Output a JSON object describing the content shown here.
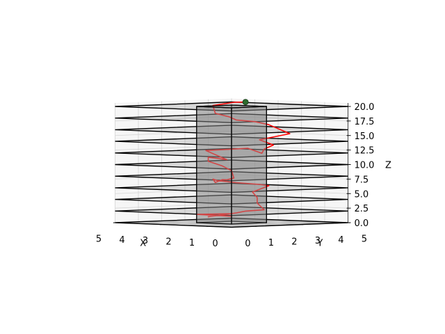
{
  "chart_data": {
    "type": "line3d",
    "title": "",
    "axes": {
      "x": {
        "label": "X",
        "range": [
          0,
          5
        ],
        "ticks": [
          "0",
          "1",
          "2",
          "3",
          "4",
          "5"
        ]
      },
      "y": {
        "label": "Y",
        "range": [
          0,
          5
        ],
        "ticks": [
          "0",
          "1",
          "2",
          "3",
          "4",
          "5"
        ]
      },
      "z": {
        "label": "Z",
        "range": [
          0,
          20
        ],
        "ticks": [
          "0.0",
          "2.5",
          "5.0",
          "7.5",
          "10.0",
          "12.5",
          "15.0",
          "17.5",
          "20.0"
        ]
      }
    },
    "grid": true,
    "floors": {
      "count": 10,
      "z_levels": [
        0,
        2,
        4,
        6,
        8,
        10,
        12,
        14,
        16,
        18,
        20
      ],
      "color": "#000000"
    },
    "central_column": {
      "x_range": [
        1.75,
        3.25
      ],
      "y_range": [
        1.75,
        3.25
      ],
      "z_range": [
        0,
        20
      ],
      "color": "#9a9a9a"
    },
    "path": {
      "color": "#ff0000",
      "points": [
        [
          4.1,
          4.1,
          0.6
        ],
        [
          4.6,
          3.1,
          1.0
        ],
        [
          3.6,
          3.6,
          1.2
        ],
        [
          4.3,
          3.3,
          0.6
        ],
        [
          3.3,
          3.5,
          1.4
        ],
        [
          2.8,
          3.4,
          1.8
        ],
        [
          1.9,
          3.3,
          2.2
        ],
        [
          2.2,
          3.3,
          3.3
        ],
        [
          2.4,
          3.5,
          4.2
        ],
        [
          2.6,
          3.5,
          5.1
        ],
        [
          2.2,
          3.8,
          6.2
        ],
        [
          2.5,
          3.7,
          6.4
        ],
        [
          3.3,
          3.5,
          6.6
        ],
        [
          4.2,
          3.6,
          6.8
        ],
        [
          4.5,
          3.7,
          7.0
        ],
        [
          4.8,
          4.1,
          6.3
        ],
        [
          4.3,
          3.9,
          6.9
        ],
        [
          3.8,
          3.6,
          7.0
        ],
        [
          3.7,
          3.8,
          7.3
        ],
        [
          3.6,
          3.6,
          8.6
        ],
        [
          3.9,
          3.5,
          9.4
        ],
        [
          4.2,
          3.2,
          10.2
        ],
        [
          4.5,
          3.5,
          10.8
        ],
        [
          4.0,
          3.8,
          10.4
        ],
        [
          4.4,
          3.3,
          12.0
        ],
        [
          3.6,
          3.5,
          12.3
        ],
        [
          2.8,
          3.5,
          12.6
        ],
        [
          2.0,
          3.3,
          11.9
        ],
        [
          1.7,
          3.1,
          12.7
        ],
        [
          1.5,
          3.3,
          13.4
        ],
        [
          2.1,
          3.3,
          14.2
        ],
        [
          1.0,
          3.5,
          15.4
        ],
        [
          1.9,
          3.5,
          16.8
        ],
        [
          2.6,
          3.6,
          17.2
        ],
        [
          3.3,
          3.5,
          17.4
        ],
        [
          3.9,
          3.8,
          17.8
        ],
        [
          4.5,
          3.8,
          18.3
        ],
        [
          4.7,
          3.9,
          19.6
        ],
        [
          4.1,
          4.2,
          20.2
        ],
        [
          3.7,
          4.3,
          20.3
        ]
      ]
    },
    "end_marker": {
      "point": [
        3.7,
        4.3,
        20.3
      ],
      "color": "#2e6b2e"
    }
  }
}
